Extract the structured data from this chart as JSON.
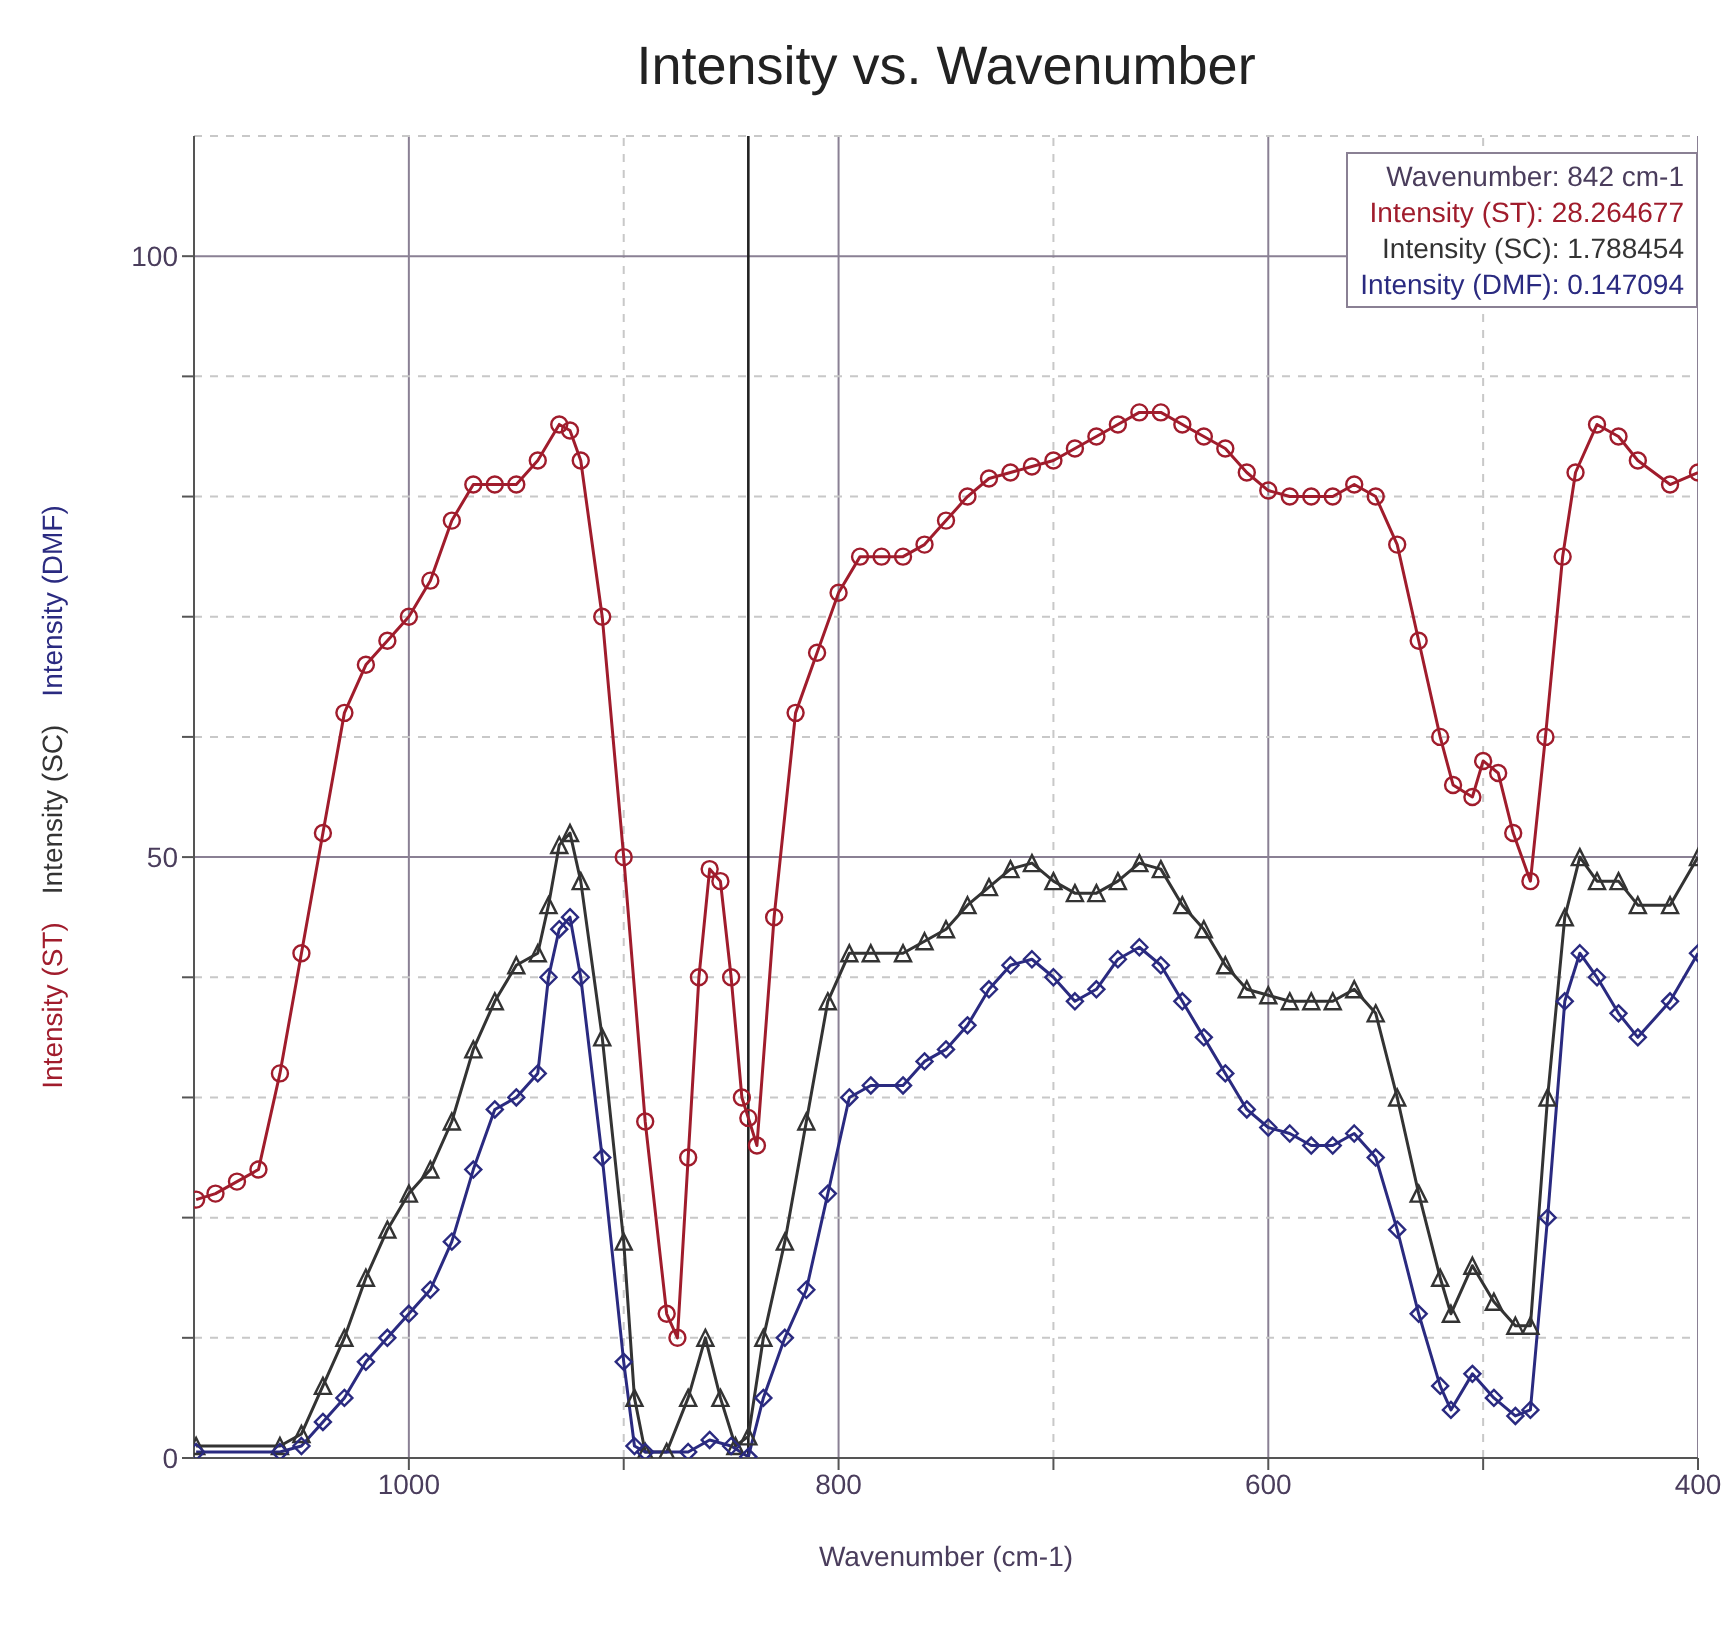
{
  "chart_data": {
    "type": "line",
    "title": "Intensity vs. Wavenumber",
    "xlabel": "Wavenumber (cm-1)",
    "xlim": [
      1100,
      400
    ],
    "xticks": [
      {
        "value": 1000,
        "label": "1000"
      },
      {
        "value": 900,
        "label": null
      },
      {
        "value": 800,
        "label": "800"
      },
      {
        "value": 700,
        "label": null
      },
      {
        "value": 600,
        "label": "600"
      },
      {
        "value": 500,
        "label": null
      },
      {
        "value": 400,
        "label": "400"
      }
    ],
    "ylim": [
      0,
      110
    ],
    "yticks": [
      0,
      {
        "value": 10,
        "label": null
      },
      {
        "value": 20,
        "label": null
      },
      {
        "value": 30,
        "label": null
      },
      {
        "value": 40,
        "label": null
      },
      50,
      {
        "value": 60,
        "label": null
      },
      {
        "value": 70,
        "label": null
      },
      {
        "value": 80,
        "label": null
      },
      {
        "value": 90,
        "label": null
      },
      100
    ],
    "grid": true,
    "ref_lines": [
      {
        "axis": "x",
        "value": 842,
        "color": "#222222"
      }
    ],
    "annotations": [
      "Wavenumber: 842 cm-1",
      "Intensity (ST): 28.264677",
      "Intensity (SC): 1.788454",
      "Intensity (DMF): 0.147094"
    ],
    "series": [
      {
        "name": "Intensity (ST)",
        "color": "#a01c2c",
        "marker": "circle",
        "x": [
          1099,
          1090,
          1080,
          1070,
          1060,
          1050,
          1040,
          1030,
          1020,
          1010,
          1000,
          990,
          980,
          970,
          960,
          950,
          940,
          930,
          925,
          920,
          910,
          900,
          890,
          880,
          875,
          870,
          865,
          860,
          855,
          850,
          845,
          842,
          838,
          830,
          820,
          810,
          800,
          790,
          780,
          770,
          760,
          750,
          740,
          730,
          720,
          710,
          700,
          690,
          680,
          670,
          660,
          650,
          640,
          630,
          620,
          610,
          600,
          590,
          580,
          570,
          560,
          550,
          540,
          530,
          520,
          514,
          505,
          500,
          493,
          486,
          478,
          471,
          463,
          457,
          447,
          437,
          428,
          413,
          400
        ],
        "values": [
          21.5,
          22,
          23,
          24,
          32,
          42,
          52,
          62,
          66,
          68,
          70,
          73,
          78,
          81,
          81,
          81,
          83,
          86,
          85.5,
          83,
          70,
          50,
          28,
          12,
          10,
          25,
          40,
          49,
          48,
          40,
          30,
          28.3,
          26,
          45,
          62,
          67,
          72,
          75,
          75,
          75,
          76,
          78,
          80,
          81.5,
          82,
          82.5,
          83,
          84,
          85,
          86,
          87,
          87,
          86,
          85,
          84,
          82,
          80.5,
          80,
          80,
          80,
          81,
          80,
          76,
          68,
          60,
          56,
          55,
          58,
          57,
          52,
          48,
          60,
          75,
          82,
          86,
          85,
          83,
          81,
          82
        ]
      },
      {
        "name": "Intensity (SC)",
        "color": "#333333",
        "marker": "triangle",
        "x": [
          1099,
          1060,
          1050,
          1040,
          1030,
          1020,
          1010,
          1000,
          990,
          980,
          970,
          960,
          950,
          940,
          935,
          930,
          925,
          920,
          910,
          900,
          895,
          890,
          880,
          870,
          862,
          855,
          848,
          842,
          835,
          825,
          815,
          805,
          795,
          785,
          770,
          760,
          750,
          740,
          730,
          720,
          710,
          700,
          690,
          680,
          670,
          660,
          650,
          640,
          630,
          620,
          610,
          600,
          590,
          580,
          570,
          560,
          550,
          540,
          530,
          520,
          515,
          505,
          495,
          485,
          478,
          470,
          462,
          455,
          447,
          437,
          428,
          413,
          400
        ],
        "values": [
          1,
          1,
          2,
          6,
          10,
          15,
          19,
          22,
          24,
          28,
          34,
          38,
          41,
          42,
          46,
          51,
          52,
          48,
          35,
          18,
          5,
          0.5,
          0.5,
          5,
          10,
          5,
          1,
          1.8,
          10,
          18,
          28,
          38,
          42,
          42,
          42,
          43,
          44,
          46,
          47.5,
          49,
          49.5,
          48,
          47,
          47,
          48,
          49.5,
          49,
          46,
          44,
          41,
          39,
          38.5,
          38,
          38,
          38,
          39,
          37,
          30,
          22,
          15,
          12,
          16,
          13,
          11,
          11,
          30,
          45,
          50,
          48,
          48,
          46,
          46,
          50
        ]
      },
      {
        "name": "Intensity (DMF)",
        "color": "#2a2a80",
        "marker": "diamond",
        "x": [
          1099,
          1060,
          1050,
          1040,
          1030,
          1020,
          1010,
          1000,
          990,
          980,
          970,
          960,
          950,
          940,
          935,
          930,
          925,
          920,
          910,
          900,
          895,
          890,
          870,
          860,
          850,
          842,
          835,
          825,
          815,
          805,
          795,
          785,
          770,
          760,
          750,
          740,
          730,
          720,
          710,
          700,
          690,
          680,
          670,
          660,
          650,
          640,
          630,
          620,
          610,
          600,
          590,
          580,
          570,
          560,
          550,
          540,
          530,
          520,
          515,
          505,
          495,
          485,
          478,
          470,
          462,
          455,
          447,
          437,
          428,
          413,
          400
        ],
        "values": [
          0.5,
          0.5,
          1,
          3,
          5,
          8,
          10,
          12,
          14,
          18,
          24,
          29,
          30,
          32,
          40,
          44,
          45,
          40,
          25,
          8,
          1,
          0.5,
          0.5,
          1.5,
          1,
          0.1,
          5,
          10,
          14,
          22,
          30,
          31,
          31,
          33,
          34,
          36,
          39,
          41,
          41.5,
          40,
          38,
          39,
          41.5,
          42.5,
          41,
          38,
          35,
          32,
          29,
          27.5,
          27,
          26,
          26,
          27,
          25,
          19,
          12,
          6,
          4,
          7,
          5,
          3.5,
          4,
          20,
          38,
          42,
          40,
          37,
          35,
          38,
          42
        ]
      }
    ]
  }
}
